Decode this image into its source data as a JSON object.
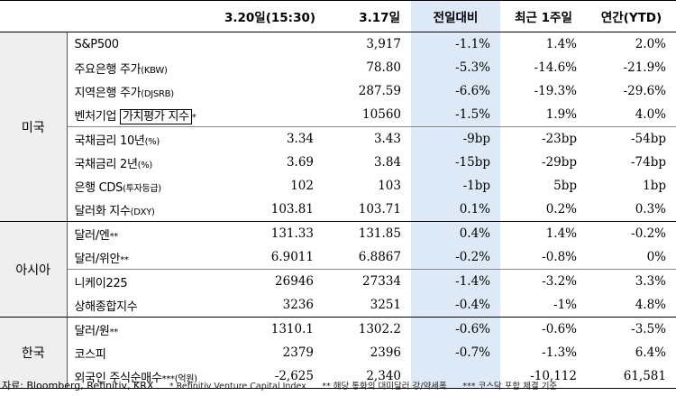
{
  "header": {
    "col1": "3.20일(15:30)",
    "col2": "3.17일",
    "col3": "전일대비",
    "col4": "최근 1주일",
    "col5": "연간(YTD)"
  },
  "regions": {
    "us": "미국",
    "asia": "아시아",
    "korea": "한국"
  },
  "rows": [
    {
      "label": "S&P500",
      "suffix": "",
      "d1": "",
      "d2": "3,917",
      "chg": "-1.1%",
      "wk": "1.4%",
      "ytd": "2.0%"
    },
    {
      "label": "주요은행 주가",
      "suffix": "(KBW)",
      "d1": "",
      "d2": "78.80",
      "chg": "-5.3%",
      "wk": "-14.6%",
      "ytd": "-21.9%"
    },
    {
      "label": "지역은행 주가",
      "suffix": "(DJSRB)",
      "d1": "",
      "d2": "287.59",
      "chg": "-6.6%",
      "wk": "-19.3%",
      "ytd": "-29.6%"
    },
    {
      "label": "벤처기업 ",
      "boxed": "가치평가 지수",
      "suffix": "*",
      "d1": "",
      "d2": "10560",
      "chg": "-1.5%",
      "wk": "1.9%",
      "ytd": "4.0%"
    },
    {
      "label": "국채금리 10년",
      "suffix": "(%)",
      "d1": "3.34",
      "d2": "3.43",
      "chg": "-9bp",
      "wk": "-23bp",
      "ytd": "-54bp"
    },
    {
      "label": "국채금리 2년",
      "suffix": "(%)",
      "d1": "3.69",
      "d2": "3.84",
      "chg": "-15bp",
      "wk": "-29bp",
      "ytd": "-74bp"
    },
    {
      "label": "은행 CDS",
      "suffix": "(투자등급)",
      "d1": "102",
      "d2": "103",
      "chg": "-1bp",
      "wk": "5bp",
      "ytd": "1bp"
    },
    {
      "label": "달러화 지수",
      "suffix": "(DXY)",
      "d1": "103.81",
      "d2": "103.71",
      "chg": "0.1%",
      "wk": "0.2%",
      "ytd": "0.3%"
    },
    {
      "label": "달러/엔",
      "suffix": "**",
      "d1": "131.33",
      "d2": "131.85",
      "chg": "0.4%",
      "wk": "1.4%",
      "ytd": "-0.2%"
    },
    {
      "label": "달러/위안",
      "suffix": "**",
      "d1": "6.9011",
      "d2": "6.8867",
      "chg": "-0.2%",
      "wk": "-0.8%",
      "ytd": "0%"
    },
    {
      "label": "니케이225",
      "suffix": "",
      "d1": "26946",
      "d2": "27334",
      "chg": "-1.4%",
      "wk": "-3.2%",
      "ytd": "3.3%"
    },
    {
      "label": "상해종합지수",
      "suffix": "",
      "d1": "3236",
      "d2": "3251",
      "chg": "-0.4%",
      "wk": "-1%",
      "ytd": "4.8%"
    },
    {
      "label": "달러/원",
      "suffix": "**",
      "d1": "1310.1",
      "d2": "1302.2",
      "chg": "-0.6%",
      "wk": "-0.6%",
      "ytd": "-3.5%"
    },
    {
      "label": "코스피",
      "suffix": "",
      "d1": "2379",
      "d2": "2396",
      "chg": "-0.7%",
      "wk": "-1.3%",
      "ytd": "6.4%"
    },
    {
      "label": "외국인 주식순매수",
      "suffix": "***(억원)",
      "d1": "-2,625",
      "d2": "2,340",
      "chg": "",
      "wk": "-10,112",
      "ytd": "61,581"
    }
  ],
  "footer": {
    "source": "자료: Bloomberg, Refinitiv, KRX",
    "note1": "* Refinitiv Venture Capital Index",
    "note2": "** 해당 통화의 대미달러 강/약세폭",
    "note3": "*** 코스닥 포함 체결 기준"
  },
  "colors": {
    "highlight_column": "#dde9f6",
    "region_bg": "#efefef"
  }
}
